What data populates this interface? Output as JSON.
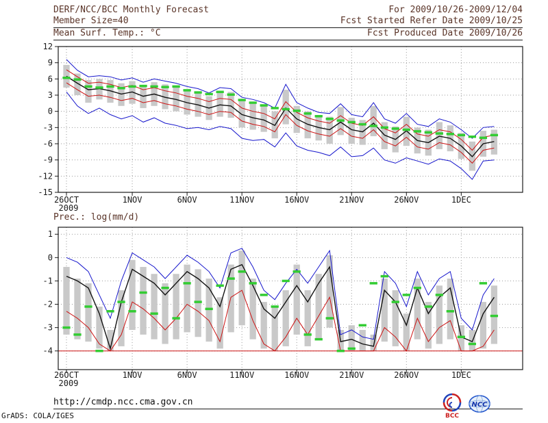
{
  "header": {
    "line1_left": "DERF/NCC/BCC Monthly Forecast",
    "line1_right": "For 2009/10/26-2009/12/04",
    "line2_left": "Member Size=40",
    "line2_right": "Fcst Started Refer Date 2009/10/25",
    "line3_left": "Mean Surf. Temp.: °C",
    "line3_right": "Fcst Produced Date 2009/10/26"
  },
  "footer": {
    "url": "http://cmdp.ncc.cma.gov.cn",
    "credit": "GrADS: COLA/IGES",
    "logos": {
      "bcc_label": "BCC",
      "ncc_label": "NCC"
    }
  },
  "colors": {
    "header_text": "#5a3428",
    "axis": "#1a1a1a",
    "grid": "#999999",
    "bar": "#c9c9c9",
    "blue": "#1515cc",
    "red": "#cc1111",
    "black": "#111111",
    "green": "#33cc33"
  },
  "chart_data": [
    {
      "type": "line",
      "title": "Mean Surf. Temp.: °C",
      "xlabel": "",
      "ylabel": "°C",
      "xlim": [
        -0.75,
        41.6
      ],
      "ylim": [
        -15,
        12
      ],
      "grid": "dotted",
      "y_ticks": [
        12,
        9,
        6,
        3,
        0,
        -3,
        -6,
        -9,
        -12,
        -15
      ],
      "x_ticks": [
        {
          "pos": 0,
          "label": "26OCT",
          "sub": "2009"
        },
        {
          "pos": 6,
          "label": "1NOV"
        },
        {
          "pos": 11,
          "label": "6NOV"
        },
        {
          "pos": 16,
          "label": "11NOV"
        },
        {
          "pos": 21,
          "label": "16NOV"
        },
        {
          "pos": 26,
          "label": "21NOV"
        },
        {
          "pos": 31,
          "label": "26NOV"
        },
        {
          "pos": 36,
          "label": "1DEC"
        }
      ],
      "bars": {
        "name": "ensemble-spread",
        "high": [
          8.6,
          7.0,
          5.8,
          6.0,
          5.8,
          5.2,
          5.6,
          4.8,
          5.4,
          5.0,
          4.6,
          4.0,
          3.6,
          2.8,
          3.8,
          3.6,
          2.0,
          1.6,
          1.0,
          0.0,
          4.0,
          1.0,
          0.0,
          -0.8,
          -1.0,
          0.8,
          -1.2,
          -1.6,
          1.0,
          -2.0,
          -2.8,
          -1.0,
          -3.0,
          -3.4,
          -2.0,
          -2.6,
          -4.0,
          -5.6,
          -3.6,
          -3.4
        ],
        "low": [
          4.4,
          3.0,
          1.6,
          2.2,
          1.6,
          1.0,
          1.4,
          0.6,
          1.0,
          0.4,
          0.0,
          -0.6,
          -1.0,
          -1.6,
          -1.0,
          -1.2,
          -3.0,
          -3.4,
          -3.8,
          -5.0,
          -2.4,
          -4.0,
          -5.0,
          -5.4,
          -6.0,
          -4.4,
          -6.0,
          -6.2,
          -4.6,
          -7.0,
          -7.6,
          -6.4,
          -7.8,
          -8.2,
          -7.0,
          -7.4,
          -8.8,
          -11.0,
          -8.4,
          -8.0
        ]
      },
      "lines": [
        {
          "name": "ensemble-max",
          "color": "#1515cc",
          "width": 1,
          "values": [
            9.6,
            7.6,
            6.4,
            6.6,
            6.4,
            5.8,
            6.2,
            5.4,
            6.0,
            5.6,
            5.2,
            4.6,
            4.2,
            3.4,
            4.4,
            4.2,
            2.6,
            2.2,
            1.6,
            0.6,
            5.0,
            1.6,
            0.6,
            -0.2,
            -0.4,
            1.4,
            -0.6,
            -1.0,
            1.6,
            -1.4,
            -2.2,
            -0.4,
            -2.4,
            -2.8,
            -1.4,
            -2.0,
            -3.4,
            -5.0,
            -3.0,
            -2.8
          ]
        },
        {
          "name": "ensemble-min",
          "color": "#1515cc",
          "width": 1,
          "values": [
            3.6,
            1.0,
            -0.4,
            0.6,
            -0.6,
            -1.4,
            -0.8,
            -2.0,
            -1.2,
            -2.2,
            -2.6,
            -3.2,
            -3.0,
            -3.4,
            -2.8,
            -3.2,
            -5.0,
            -5.4,
            -5.2,
            -6.6,
            -4.0,
            -6.4,
            -7.2,
            -7.6,
            -8.2,
            -6.6,
            -8.4,
            -8.2,
            -6.8,
            -9.0,
            -9.6,
            -8.6,
            -9.2,
            -9.8,
            -8.8,
            -9.2,
            -10.6,
            -12.6,
            -9.2,
            -9.0
          ]
        },
        {
          "name": "spread-upper",
          "color": "#cc1111",
          "width": 1,
          "values": [
            7.7,
            6.4,
            5.2,
            5.4,
            5.0,
            4.4,
            4.8,
            4.0,
            4.4,
            3.8,
            3.4,
            2.8,
            2.4,
            1.8,
            2.4,
            2.2,
            0.6,
            0.0,
            -0.4,
            -1.4,
            1.8,
            -0.2,
            -1.2,
            -1.8,
            -2.2,
            -0.8,
            -2.2,
            -2.6,
            -1.0,
            -3.2,
            -4.0,
            -2.4,
            -4.2,
            -4.6,
            -3.4,
            -3.8,
            -5.2,
            -7.2,
            -4.8,
            -4.4
          ]
        },
        {
          "name": "spread-lower",
          "color": "#cc1111",
          "width": 1,
          "values": [
            5.3,
            4.0,
            2.8,
            3.0,
            2.6,
            2.0,
            2.4,
            1.6,
            2.0,
            1.4,
            1.0,
            0.4,
            0.0,
            -0.6,
            0.0,
            -0.2,
            -1.8,
            -2.4,
            -2.8,
            -3.8,
            -0.6,
            -2.6,
            -3.6,
            -4.2,
            -4.6,
            -3.2,
            -4.6,
            -5.0,
            -3.4,
            -5.6,
            -6.4,
            -4.8,
            -6.6,
            -7.0,
            -5.8,
            -6.2,
            -7.6,
            -9.6,
            -7.2,
            -6.8
          ]
        },
        {
          "name": "ensemble-mean",
          "color": "#111111",
          "width": 1.4,
          "values": [
            6.5,
            5.2,
            4.0,
            4.2,
            3.8,
            3.2,
            3.6,
            2.8,
            3.2,
            2.6,
            2.2,
            1.6,
            1.2,
            0.6,
            1.2,
            1.0,
            -0.6,
            -1.2,
            -1.6,
            -2.6,
            0.6,
            -1.4,
            -2.4,
            -3.0,
            -3.4,
            -2.0,
            -3.4,
            -3.8,
            -2.2,
            -4.4,
            -5.2,
            -3.6,
            -5.4,
            -5.8,
            -4.6,
            -5.0,
            -6.4,
            -8.4,
            -6.0,
            -5.6
          ]
        }
      ],
      "dashes": {
        "name": "observation",
        "color": "#33cc33",
        "values": [
          6.2,
          5.9,
          4.6,
          4.4,
          4.6,
          4.3,
          4.6,
          4.7,
          4.6,
          4.5,
          4.6,
          3.9,
          3.5,
          3.2,
          3.6,
          3.1,
          2.1,
          1.6,
          1.1,
          0.6,
          0.4,
          0.1,
          -0.4,
          -0.9,
          -1.4,
          -1.7,
          -2.0,
          -2.4,
          -2.7,
          -3.0,
          -3.2,
          -3.4,
          -3.7,
          -3.9,
          -4.1,
          -4.2,
          -4.4,
          -4.7,
          -4.9,
          -4.4
        ]
      }
    },
    {
      "type": "line",
      "title": "Prec.: log(mm/d)",
      "xlabel": "",
      "ylabel": "log(mm/d)",
      "xlim": [
        -0.75,
        41.6
      ],
      "ylim": [
        -4.8,
        1.3
      ],
      "grid": "dotted",
      "y_ticks": [
        1,
        0,
        -1,
        -2,
        -3,
        -4
      ],
      "x_ticks": [
        {
          "pos": 0,
          "label": "26OCT",
          "sub": "2009"
        },
        {
          "pos": 6,
          "label": "1NOV"
        },
        {
          "pos": 11,
          "label": "6NOV"
        },
        {
          "pos": 16,
          "label": "11NOV"
        },
        {
          "pos": 21,
          "label": "16NOV"
        },
        {
          "pos": 26,
          "label": "21NOV"
        },
        {
          "pos": 31,
          "label": "26NOV"
        },
        {
          "pos": 36,
          "label": "1DEC"
        }
      ],
      "baseline": {
        "value": -4,
        "color": "#cc1111"
      },
      "bars": {
        "name": "ensemble-spread",
        "high": [
          -0.4,
          -0.9,
          -1.1,
          -2.1,
          -3.1,
          -1.4,
          -0.1,
          -0.4,
          -0.7,
          -1.1,
          -0.7,
          -0.3,
          -0.5,
          -0.9,
          -1.7,
          -0.3,
          0.3,
          -0.9,
          -1.9,
          -2.1,
          -1.4,
          -0.3,
          -1.4,
          -0.7,
          0.1,
          -3.1,
          -2.9,
          -3.1,
          -3.3,
          -0.9,
          -1.4,
          -2.4,
          -0.9,
          -1.9,
          -1.2,
          -0.9,
          -2.9,
          -3.1,
          -1.9,
          -1.2
        ],
        "low": [
          -3.3,
          -3.5,
          -3.6,
          -3.9,
          -4.0,
          -3.8,
          -3.1,
          -3.3,
          -3.5,
          -3.7,
          -3.5,
          -3.2,
          -3.4,
          -3.6,
          -3.9,
          -3.2,
          -2.9,
          -3.5,
          -3.9,
          -4.0,
          -3.8,
          -3.3,
          -3.8,
          -3.5,
          -3.0,
          -4.0,
          -4.0,
          -4.0,
          -4.0,
          -3.6,
          -3.8,
          -4.0,
          -3.5,
          -3.9,
          -3.7,
          -3.5,
          -4.0,
          -4.0,
          -3.9,
          -3.7
        ]
      },
      "lines": [
        {
          "name": "ensemble-max",
          "color": "#1515cc",
          "width": 1,
          "values": [
            0.0,
            -0.2,
            -0.6,
            -1.6,
            -2.6,
            -1.0,
            0.2,
            -0.1,
            -0.4,
            -0.9,
            -0.4,
            0.1,
            -0.2,
            -0.6,
            -1.3,
            0.2,
            0.4,
            -0.4,
            -1.4,
            -1.8,
            -1.1,
            -0.5,
            -1.1,
            -0.4,
            0.3,
            -3.3,
            -3.1,
            -3.4,
            -3.5,
            -0.6,
            -1.1,
            -2.1,
            -0.6,
            -1.6,
            -0.9,
            -0.6,
            -2.6,
            -3.1,
            -1.6,
            -0.9
          ]
        },
        {
          "name": "ensemble-mean",
          "color": "#111111",
          "width": 1.4,
          "values": [
            -0.8,
            -1.0,
            -1.3,
            -2.4,
            -3.9,
            -1.9,
            -0.5,
            -0.8,
            -1.1,
            -1.6,
            -1.1,
            -0.6,
            -0.9,
            -1.3,
            -2.1,
            -0.5,
            -0.3,
            -1.2,
            -2.2,
            -2.6,
            -1.9,
            -1.2,
            -1.9,
            -1.1,
            -0.4,
            -3.6,
            -3.5,
            -3.7,
            -3.8,
            -1.4,
            -1.9,
            -2.9,
            -1.3,
            -2.4,
            -1.7,
            -1.3,
            -3.4,
            -3.6,
            -2.4,
            -1.7
          ]
        },
        {
          "name": "ensemble-min",
          "color": "#cc1111",
          "width": 1,
          "values": [
            -2.3,
            -2.6,
            -3.0,
            -3.7,
            -4.0,
            -3.3,
            -1.9,
            -2.2,
            -2.6,
            -3.1,
            -2.6,
            -2.0,
            -2.3,
            -2.7,
            -3.6,
            -1.7,
            -1.4,
            -2.7,
            -3.7,
            -4.0,
            -3.4,
            -2.6,
            -3.3,
            -2.5,
            -1.7,
            -4.0,
            -4.0,
            -4.0,
            -4.0,
            -3.0,
            -3.4,
            -4.0,
            -2.6,
            -3.6,
            -3.0,
            -2.7,
            -4.0,
            -4.0,
            -3.8,
            -3.1
          ]
        }
      ],
      "dashes": {
        "name": "observation",
        "color": "#33cc33",
        "values": [
          -3.0,
          -3.3,
          -2.1,
          -4.0,
          -2.3,
          -1.9,
          -2.3,
          -1.5,
          -2.4,
          -1.3,
          -2.6,
          -1.1,
          -1.9,
          -2.2,
          -1.2,
          -0.9,
          -0.6,
          -1.1,
          -1.6,
          -2.1,
          -1.0,
          -0.6,
          -3.3,
          -3.5,
          -2.6,
          -4.0,
          -3.9,
          -2.9,
          -1.1,
          -0.8,
          -1.9,
          -1.6,
          -1.3,
          -2.1,
          -1.6,
          -2.3,
          -3.4,
          -3.7,
          -1.1,
          -2.5
        ]
      }
    }
  ]
}
